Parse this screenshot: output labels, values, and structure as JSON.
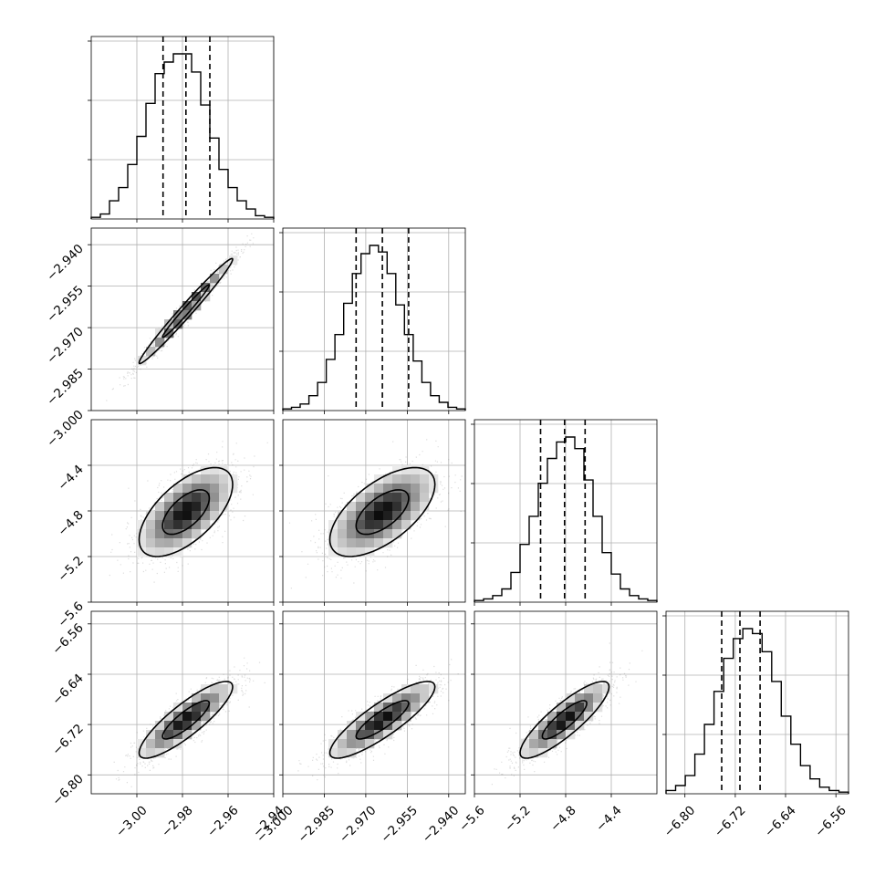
{
  "chart_data": {
    "type": "corner",
    "grid": true,
    "parameters": [
      {
        "index": 0,
        "range": [
          -3.02,
          -2.94
        ],
        "ticks": [
          -3.0,
          -2.98,
          -2.96,
          -2.94
        ],
        "tick_labels": [
          "−3.00",
          "−2.98",
          "−2.96",
          "−2.94"
        ],
        "quantiles": [
          -2.9885,
          -2.9785,
          -2.968
        ],
        "histogram": [
          0.01,
          0.03,
          0.11,
          0.19,
          0.33,
          0.5,
          0.7,
          0.88,
          0.95,
          1.0,
          1.0,
          0.89,
          0.69,
          0.49,
          0.3,
          0.19,
          0.11,
          0.06,
          0.02,
          0.01
        ]
      },
      {
        "index": 1,
        "range": [
          -3.0,
          -2.934
        ],
        "ticks": [
          -3.0,
          -2.985,
          -2.97,
          -2.955,
          -2.94
        ],
        "tick_labels": [
          "−3.000",
          "−2.985",
          "−2.970",
          "−2.955",
          "−2.940"
        ],
        "quantiles": [
          -2.9735,
          -2.964,
          -2.9545
        ],
        "histogram": [
          0.01,
          0.02,
          0.04,
          0.09,
          0.17,
          0.31,
          0.46,
          0.65,
          0.83,
          0.95,
          1.0,
          0.96,
          0.83,
          0.64,
          0.46,
          0.3,
          0.17,
          0.09,
          0.05,
          0.02,
          0.01
        ]
      },
      {
        "index": 2,
        "range": [
          -5.6,
          -4.0
        ],
        "ticks": [
          -5.6,
          -5.2,
          -4.8,
          -4.4
        ],
        "tick_labels": [
          "−5.6",
          "−5.2",
          "−4.8",
          "−4.4"
        ],
        "quantiles": [
          -5.02,
          -4.81,
          -4.63
        ],
        "histogram": [
          0.01,
          0.02,
          0.04,
          0.08,
          0.18,
          0.35,
          0.52,
          0.72,
          0.87,
          0.97,
          1.0,
          0.93,
          0.74,
          0.52,
          0.3,
          0.17,
          0.08,
          0.04,
          0.02,
          0.01
        ]
      },
      {
        "index": 3,
        "range": [
          -6.83,
          -6.54
        ],
        "ticks": [
          -6.8,
          -6.72,
          -6.64,
          -6.56
        ],
        "tick_labels": [
          "−6.80",
          "−6.72",
          "−6.64",
          "−6.56"
        ],
        "quantiles": [
          -6.7415,
          -6.7125,
          -6.6805
        ],
        "histogram": [
          0.02,
          0.05,
          0.11,
          0.24,
          0.42,
          0.62,
          0.82,
          0.94,
          1.0,
          0.97,
          0.86,
          0.68,
          0.47,
          0.3,
          0.17,
          0.09,
          0.04,
          0.02,
          0.01
        ]
      }
    ],
    "pairs": [
      {
        "x": 0,
        "y": 1,
        "correlation": 0.985
      },
      {
        "x": 0,
        "y": 2,
        "correlation": 0.62
      },
      {
        "x": 1,
        "y": 2,
        "correlation": 0.62
      },
      {
        "x": 0,
        "y": 3,
        "correlation": 0.86
      },
      {
        "x": 1,
        "y": 3,
        "correlation": 0.86
      },
      {
        "x": 2,
        "y": 3,
        "correlation": 0.86
      }
    ],
    "contour_levels_sigma": [
      1.0,
      2.0
    ]
  }
}
